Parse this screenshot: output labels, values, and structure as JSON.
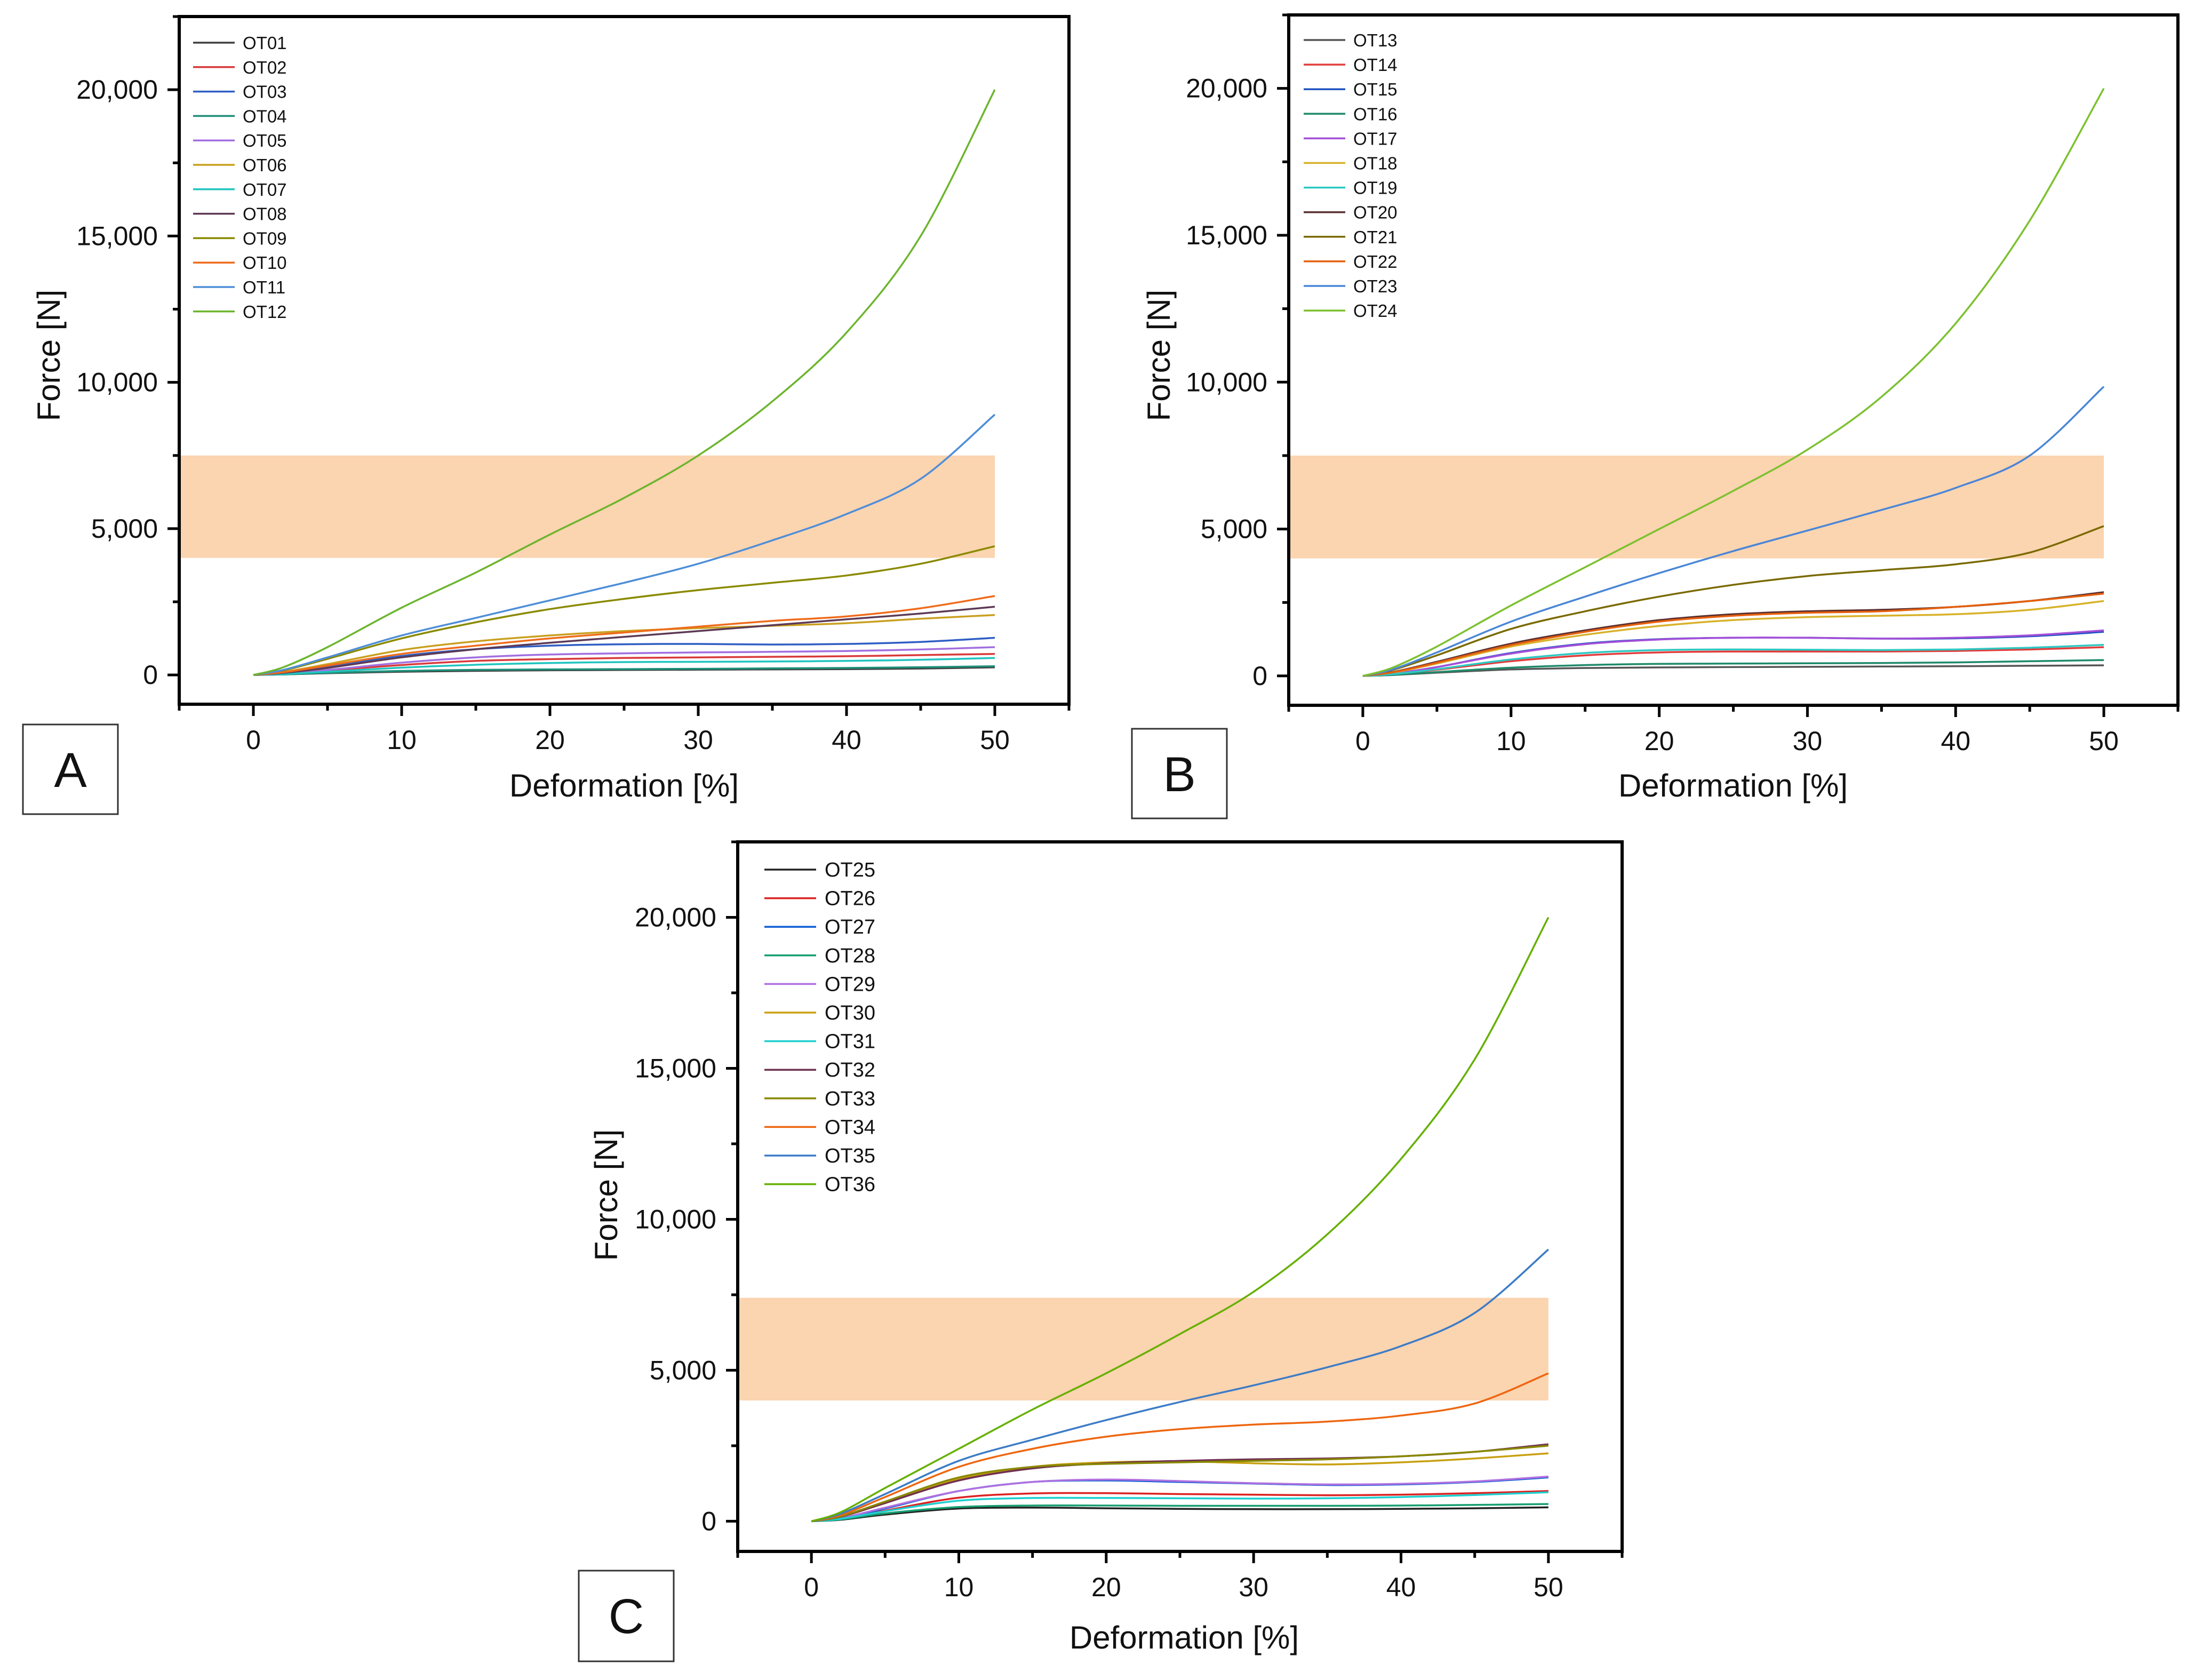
{
  "colors": {
    "band": "#f9b77c",
    "OT01": "#404040",
    "OT02": "#d93a3a",
    "OT03": "#2f5ec4",
    "OT04": "#1e8f79",
    "OT05": "#a26fe0",
    "OT06": "#c9a020",
    "OT07": "#20c4bf",
    "OT08": "#5c3a55",
    "OT09": "#8a8a00",
    "OT10": "#ef6b1b",
    "OT11": "#4e8ed8",
    "OT12": "#6cb52e",
    "OT13": "#555555",
    "OT14": "#e23c3c",
    "OT15": "#1f53c0",
    "OT16": "#1f8a6a",
    "OT17": "#a44fd8",
    "OT18": "#d8b22a",
    "OT19": "#2ec8c2",
    "OT20": "#5a3030",
    "OT21": "#7a6a00",
    "OT22": "#e6600d",
    "OT23": "#4a86d6",
    "OT24": "#7cc12f",
    "OT25": "#222222",
    "OT26": "#dd2222",
    "OT27": "#1160d6",
    "OT28": "#169e6f",
    "OT29": "#b070e0",
    "OT30": "#c8a010",
    "OT31": "#1fcfcf",
    "OT32": "#703050",
    "OT33": "#888800",
    "OT34": "#ee6610",
    "OT35": "#3c7cc6",
    "OT36": "#66b000"
  },
  "chart_data": [
    {
      "panel": "A",
      "type": "line",
      "xlabel": "Deformation [%]",
      "ylabel": "Force [N]",
      "xlim": [
        -5,
        55
      ],
      "ylim": [
        -1000,
        22500
      ],
      "xticks": [
        0,
        10,
        20,
        30,
        40,
        50
      ],
      "yticks": [
        0,
        5000,
        10000,
        15000,
        20000
      ],
      "xtick_labels": [
        "0",
        "10",
        "20",
        "30",
        "40",
        "50"
      ],
      "ytick_labels": [
        "0",
        "5,000",
        "10,000",
        "15,000",
        "20,000"
      ],
      "band": {
        "x": [
          -5,
          50
        ],
        "y": [
          4000,
          7500
        ]
      },
      "legend_position": "top-left",
      "x": [
        0,
        2,
        5,
        10,
        15,
        20,
        25,
        30,
        35,
        40,
        45,
        50
      ],
      "series": [
        {
          "name": "OT01",
          "values": [
            0,
            20,
            60,
            110,
            140,
            160,
            170,
            180,
            190,
            200,
            220,
            260
          ]
        },
        {
          "name": "OT02",
          "values": [
            0,
            40,
            150,
            340,
            480,
            540,
            580,
            600,
            620,
            640,
            680,
            720
          ]
        },
        {
          "name": "OT03",
          "values": [
            0,
            70,
            280,
            650,
            880,
            1000,
            1050,
            1060,
            1040,
            1060,
            1130,
            1270
          ]
        },
        {
          "name": "OT04",
          "values": [
            0,
            20,
            70,
            140,
            175,
            190,
            200,
            210,
            225,
            240,
            265,
            300
          ]
        },
        {
          "name": "OT05",
          "values": [
            0,
            45,
            170,
            420,
            600,
            700,
            740,
            770,
            790,
            820,
            870,
            950
          ]
        },
        {
          "name": "OT06",
          "values": [
            0,
            100,
            370,
            850,
            1150,
            1350,
            1500,
            1600,
            1680,
            1770,
            1920,
            2050
          ]
        },
        {
          "name": "OT07",
          "values": [
            0,
            30,
            110,
            250,
            350,
            410,
            440,
            450,
            460,
            480,
            520,
            580
          ]
        },
        {
          "name": "OT08",
          "values": [
            0,
            70,
            240,
            600,
            880,
            1100,
            1300,
            1500,
            1700,
            1900,
            2100,
            2330
          ]
        },
        {
          "name": "OT09",
          "values": [
            0,
            150,
            550,
            1250,
            1800,
            2250,
            2600,
            2900,
            3150,
            3400,
            3800,
            4400
          ]
        },
        {
          "name": "OT10",
          "values": [
            0,
            90,
            320,
            720,
            1000,
            1250,
            1450,
            1650,
            1850,
            2000,
            2280,
            2700
          ]
        },
        {
          "name": "OT11",
          "values": [
            0,
            170,
            600,
            1350,
            1950,
            2550,
            3150,
            3800,
            4600,
            5500,
            6700,
            8900
          ]
        },
        {
          "name": "OT12",
          "values": [
            0,
            260,
            950,
            2300,
            3500,
            4800,
            6050,
            7500,
            9350,
            11700,
            15000,
            20000
          ]
        }
      ]
    },
    {
      "panel": "B",
      "type": "line",
      "xlabel": "Deformation [%]",
      "ylabel": "Force [N]",
      "xlim": [
        -5,
        55
      ],
      "ylim": [
        -1000,
        22500
      ],
      "xticks": [
        0,
        10,
        20,
        30,
        40,
        50
      ],
      "yticks": [
        0,
        5000,
        10000,
        15000,
        20000
      ],
      "xtick_labels": [
        "0",
        "10",
        "20",
        "30",
        "40",
        "50"
      ],
      "ytick_labels": [
        "0",
        "5,000",
        "10,000",
        "15,000",
        "20,000"
      ],
      "band": {
        "x": [
          -5,
          50
        ],
        "y": [
          4000,
          7500
        ]
      },
      "legend_position": "top-left",
      "x": [
        0,
        2,
        5,
        10,
        15,
        20,
        25,
        30,
        35,
        40,
        45,
        50
      ],
      "series": [
        {
          "name": "OT13",
          "values": [
            0,
            30,
            110,
            220,
            270,
            290,
            300,
            310,
            320,
            330,
            345,
            360
          ]
        },
        {
          "name": "OT14",
          "values": [
            0,
            55,
            210,
            500,
            700,
            800,
            830,
            830,
            830,
            850,
            900,
            980
          ]
        },
        {
          "name": "OT15",
          "values": [
            0,
            75,
            300,
            780,
            1100,
            1250,
            1300,
            1300,
            1270,
            1280,
            1350,
            1500
          ]
        },
        {
          "name": "OT16",
          "values": [
            0,
            35,
            130,
            280,
            370,
            410,
            420,
            430,
            440,
            460,
            500,
            540
          ]
        },
        {
          "name": "OT17",
          "values": [
            0,
            80,
            300,
            760,
            1080,
            1240,
            1300,
            1300,
            1270,
            1300,
            1380,
            1550
          ]
        },
        {
          "name": "OT18",
          "values": [
            0,
            110,
            420,
            1000,
            1400,
            1700,
            1900,
            2000,
            2050,
            2100,
            2250,
            2550
          ]
        },
        {
          "name": "OT19",
          "values": [
            0,
            60,
            230,
            560,
            780,
            880,
            900,
            890,
            880,
            900,
            960,
            1060
          ]
        },
        {
          "name": "OT20",
          "values": [
            0,
            130,
            480,
            1100,
            1550,
            1900,
            2100,
            2200,
            2250,
            2350,
            2550,
            2850
          ]
        },
        {
          "name": "OT21",
          "values": [
            0,
            200,
            700,
            1600,
            2200,
            2700,
            3100,
            3400,
            3600,
            3800,
            4200,
            5100
          ]
        },
        {
          "name": "OT22",
          "values": [
            0,
            120,
            450,
            1050,
            1500,
            1850,
            2050,
            2150,
            2200,
            2350,
            2550,
            2800
          ]
        },
        {
          "name": "OT23",
          "values": [
            0,
            220,
            800,
            1850,
            2700,
            3500,
            4250,
            4950,
            5650,
            6400,
            7500,
            9850
          ]
        },
        {
          "name": "OT24",
          "values": [
            0,
            280,
            1000,
            2400,
            3700,
            5000,
            6300,
            7700,
            9500,
            12000,
            15500,
            20000
          ]
        }
      ]
    },
    {
      "panel": "C",
      "type": "line",
      "xlabel": "Deformation [%]",
      "ylabel": "Force [N]",
      "xlim": [
        -5,
        55
      ],
      "ylim": [
        -1000,
        22500
      ],
      "xticks": [
        0,
        10,
        20,
        30,
        40,
        50
      ],
      "yticks": [
        0,
        5000,
        10000,
        15000,
        20000
      ],
      "xtick_labels": [
        "0",
        "10",
        "20",
        "30",
        "40",
        "50"
      ],
      "ytick_labels": [
        "0",
        "5,000",
        "10,000",
        "15,000",
        "20,000"
      ],
      "band": {
        "x": [
          -5,
          50
        ],
        "y": [
          4000,
          7400
        ]
      },
      "legend_position": "top-left",
      "x": [
        0,
        2,
        5,
        10,
        15,
        20,
        25,
        30,
        35,
        40,
        45,
        50
      ],
      "series": [
        {
          "name": "OT25",
          "values": [
            0,
            50,
            220,
            420,
            450,
            430,
            410,
            400,
            400,
            410,
            430,
            460
          ]
        },
        {
          "name": "OT26",
          "values": [
            0,
            80,
            350,
            780,
            920,
            930,
            900,
            880,
            860,
            880,
            930,
            1000
          ]
        },
        {
          "name": "OT27",
          "values": [
            0,
            100,
            420,
            1000,
            1300,
            1350,
            1300,
            1250,
            1200,
            1220,
            1300,
            1450
          ]
        },
        {
          "name": "OT28",
          "values": [
            0,
            60,
            260,
            470,
            520,
            520,
            510,
            510,
            510,
            520,
            540,
            570
          ]
        },
        {
          "name": "OT29",
          "values": [
            0,
            100,
            450,
            1000,
            1300,
            1380,
            1330,
            1260,
            1220,
            1240,
            1320,
            1480
          ]
        },
        {
          "name": "OT30",
          "values": [
            0,
            150,
            600,
            1400,
            1800,
            1950,
            1980,
            1920,
            1880,
            1950,
            2080,
            2250
          ]
        },
        {
          "name": "OT31",
          "values": [
            0,
            80,
            330,
            680,
            770,
            770,
            760,
            750,
            760,
            800,
            870,
            960
          ]
        },
        {
          "name": "OT32",
          "values": [
            0,
            150,
            600,
            1350,
            1750,
            1920,
            2000,
            2050,
            2080,
            2150,
            2300,
            2550
          ]
        },
        {
          "name": "OT33",
          "values": [
            0,
            160,
            650,
            1450,
            1800,
            1900,
            1950,
            2000,
            2050,
            2150,
            2300,
            2500
          ]
        },
        {
          "name": "OT34",
          "values": [
            0,
            200,
            800,
            1800,
            2400,
            2800,
            3050,
            3200,
            3300,
            3500,
            3900,
            4900
          ]
        },
        {
          "name": "OT35",
          "values": [
            0,
            250,
            900,
            2000,
            2700,
            3350,
            3950,
            4500,
            5100,
            5800,
            6900,
            9000
          ]
        },
        {
          "name": "OT36",
          "values": [
            0,
            300,
            1100,
            2400,
            3700,
            4900,
            6200,
            7600,
            9500,
            12000,
            15300,
            20000
          ]
        }
      ]
    }
  ]
}
